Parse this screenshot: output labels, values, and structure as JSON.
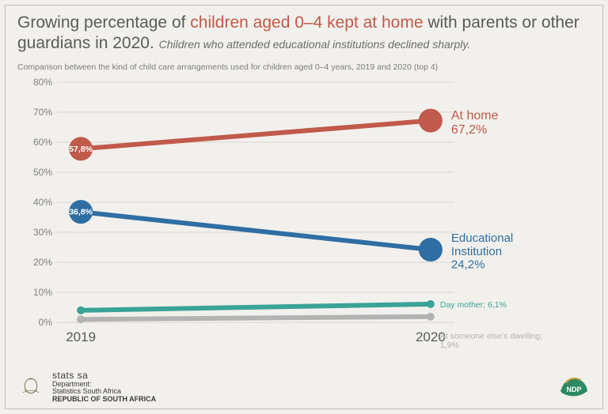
{
  "title": {
    "prefix": "Growing percentage of ",
    "emphasis": "children aged 0–4 kept at home",
    "suffix": " with parents or other guardians in 2020.",
    "subtitle_italic": "Children who attended educational institutions declined sharply.",
    "emphasis_color": "#c05a4a",
    "text_color": "#5a5a5a"
  },
  "subtitle": "Comparison between the kind of child care arrangements used for children aged 0–4 years, 2019 and 2020 (top 4)",
  "chart": {
    "type": "slope",
    "background_color": "#f2f0ec",
    "grid_color": "#d9d6d0",
    "x_categories": [
      "2019",
      "2020"
    ],
    "ylim": [
      0,
      80
    ],
    "ytick_step": 10,
    "ytick_format_suffix": "%",
    "line_width": 6,
    "marker_radius": 15,
    "marker_radius_small": 5,
    "tick_fontsize": 12,
    "xlabel_fontsize": 17,
    "series": [
      {
        "name": "At home",
        "color": "#c05a4a",
        "values": [
          57.8,
          67.2
        ],
        "left_label": "57,8%",
        "right_label_lines": [
          "At home",
          "67,2%"
        ],
        "right_label_fontsize": 16,
        "show_left_marker_label": true,
        "show_right_marker_large": true
      },
      {
        "name": "Educational Institution",
        "color": "#2f6ea3",
        "values": [
          36.8,
          24.2
        ],
        "left_label": "36,8%",
        "right_label_lines": [
          "Educational",
          "Institution",
          "24,2%"
        ],
        "right_label_fontsize": 15,
        "show_left_marker_label": true,
        "show_right_marker_large": true
      },
      {
        "name": "Day mother",
        "color": "#3aa397",
        "values": [
          4.0,
          6.1
        ],
        "left_label": "",
        "right_label_lines": [
          "Day mother; 6,1%"
        ],
        "right_label_fontsize": 10.5,
        "show_left_marker_label": false,
        "show_right_marker_large": false
      },
      {
        "name": "At someone else's dwelling",
        "color": "#b3b3b3",
        "values": [
          1.0,
          1.9
        ],
        "left_label": "",
        "right_label_lines": [
          "At someone else's dwelling;",
          "1,9%"
        ],
        "right_label_fontsize": 10.5,
        "show_left_marker_label": false,
        "show_right_marker_large": false
      }
    ]
  },
  "footer": {
    "brand": "stats sa",
    "dept_l1": "Department:",
    "dept_l2": "Statistics South Africa",
    "dept_l3": "REPUBLIC OF SOUTH AFRICA",
    "ndp_label": "NDP",
    "ndp_color": "#2e8a63"
  }
}
